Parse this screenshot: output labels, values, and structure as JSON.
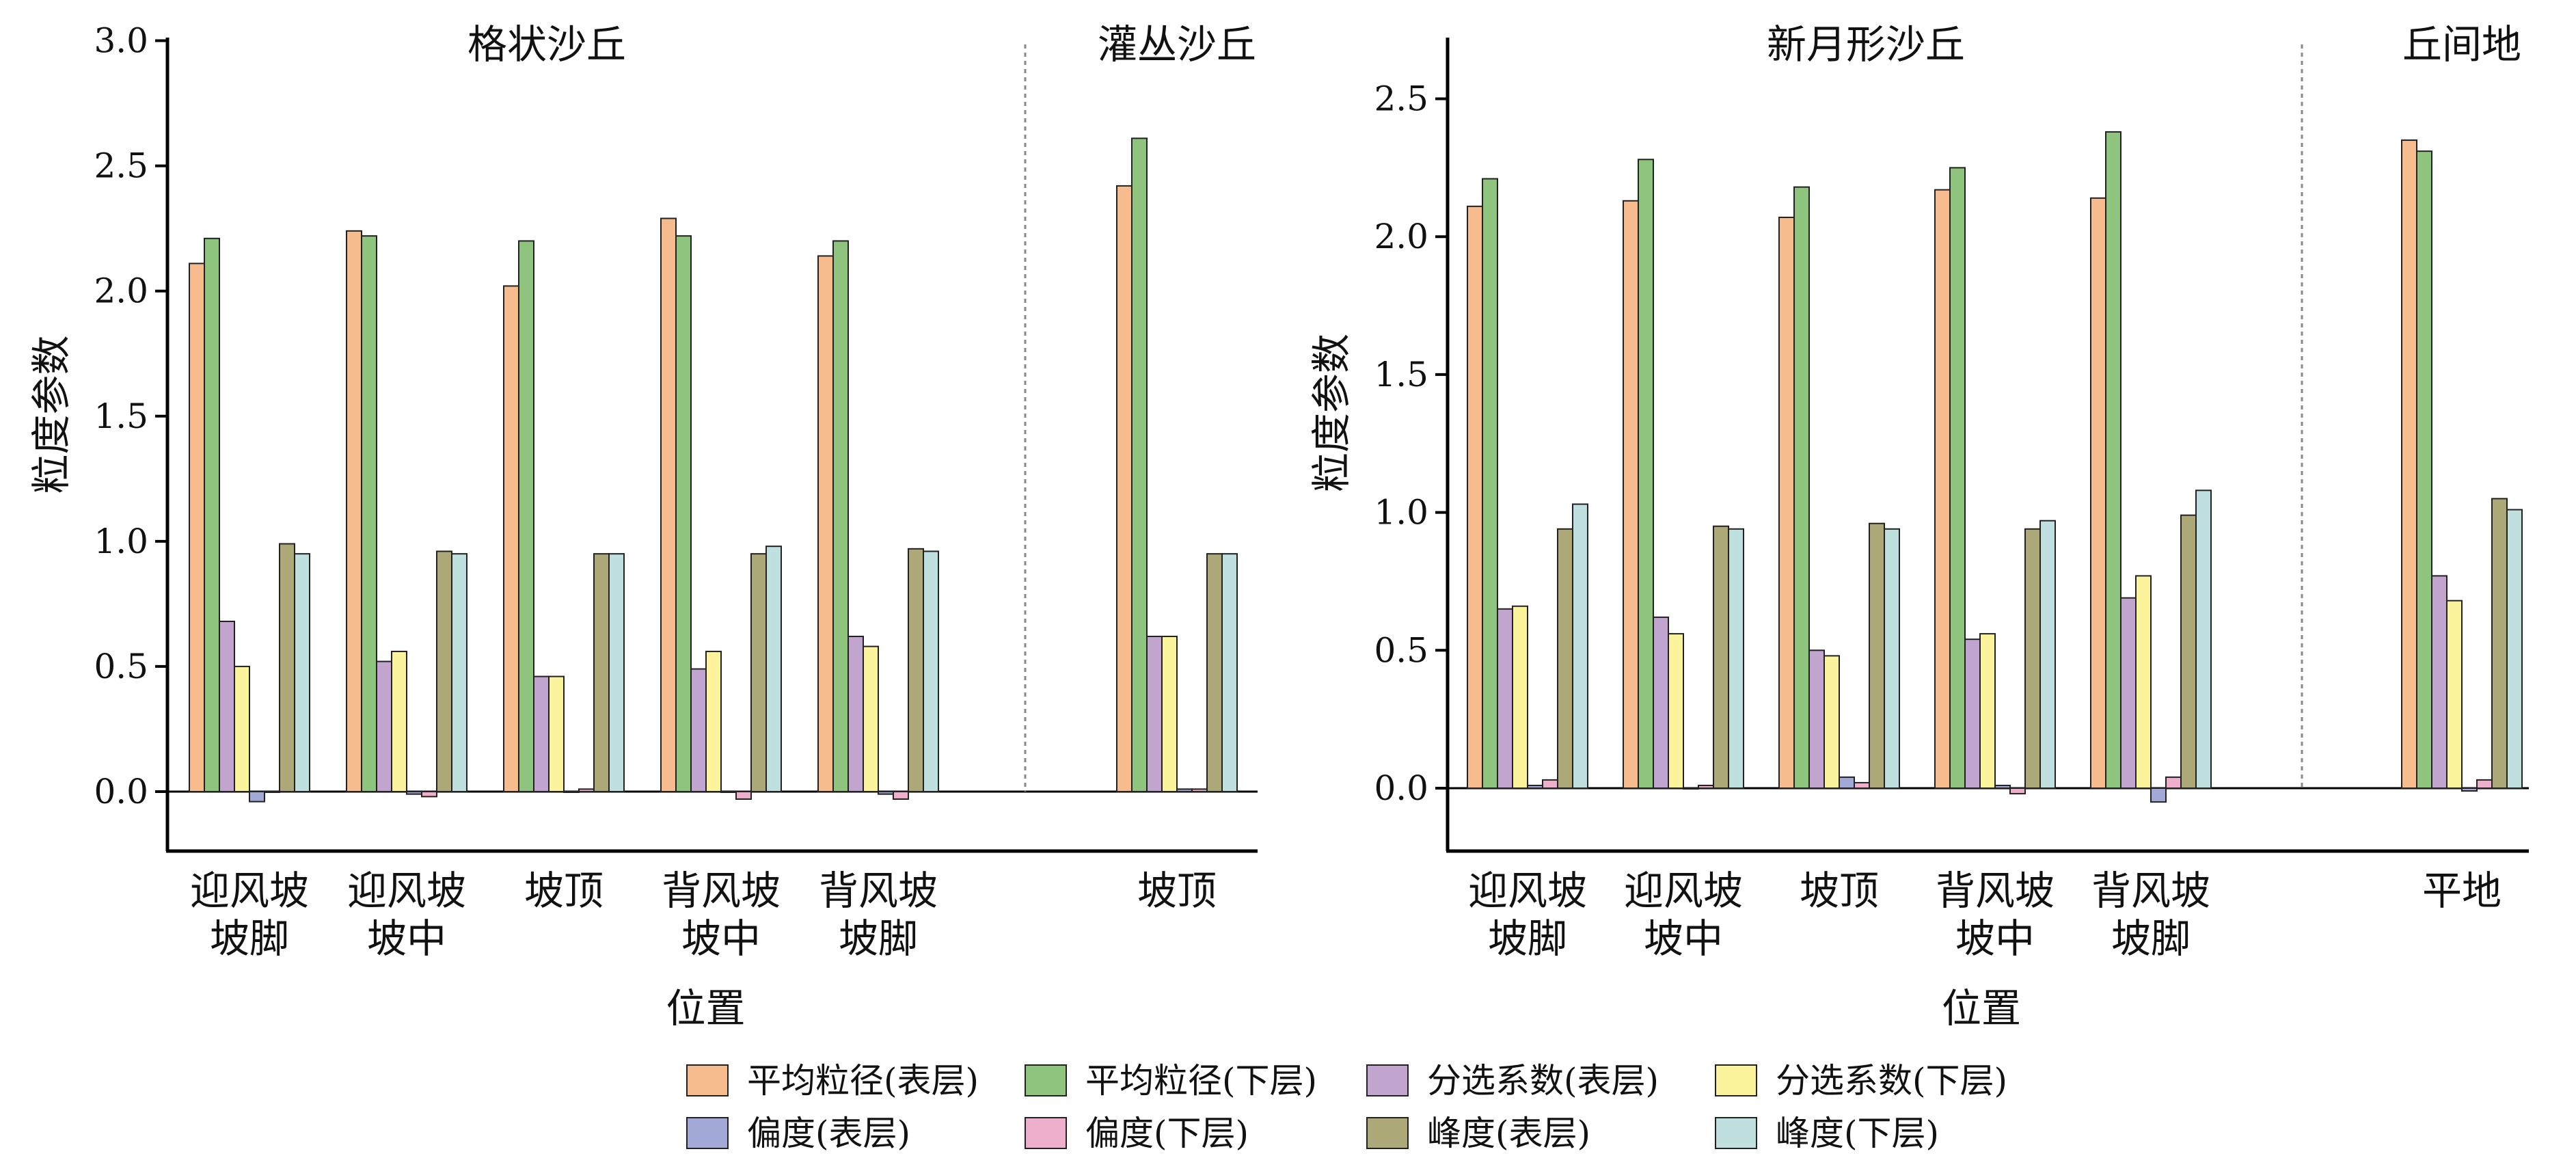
{
  "chart_data": [
    {
      "type": "bar",
      "xlabel": "位置",
      "ylabel": "粒度参数",
      "ylim": [
        -0.25,
        3.0
      ],
      "yticks": [
        "0.0",
        "0.5",
        "1.0",
        "1.5",
        "2.0",
        "2.5",
        "3.0"
      ],
      "groups": [
        "格状沙丘",
        "灌丛沙丘"
      ],
      "categories": [
        {
          "label": "迎风坡\n坡脚",
          "group": "格状沙丘"
        },
        {
          "label": "迎风坡\n坡中",
          "group": "格状沙丘"
        },
        {
          "label": "坡顶",
          "group": "格状沙丘"
        },
        {
          "label": "背风坡\n坡中",
          "group": "格状沙丘"
        },
        {
          "label": "背风坡\n坡脚",
          "group": "格状沙丘"
        },
        {
          "label": "坡顶",
          "group": "灌丛沙丘"
        }
      ],
      "series": [
        {
          "name": "平均粒径(表层)",
          "values": [
            2.11,
            2.24,
            2.02,
            2.29,
            2.14,
            2.42
          ]
        },
        {
          "name": "平均粒径(下层)",
          "values": [
            2.21,
            2.22,
            2.2,
            2.22,
            2.2,
            2.61
          ]
        },
        {
          "name": "分选系数(表层)",
          "values": [
            0.68,
            0.52,
            0.46,
            0.49,
            0.62,
            0.62
          ]
        },
        {
          "name": "分选系数(下层)",
          "values": [
            0.5,
            0.56,
            0.46,
            0.56,
            0.58,
            0.62
          ]
        },
        {
          "name": "偏度(表层)",
          "values": [
            -0.04,
            -0.01,
            0.0,
            0.0,
            -0.01,
            0.01
          ]
        },
        {
          "name": "偏度(下层)",
          "values": [
            0.0,
            -0.02,
            0.01,
            -0.03,
            -0.03,
            0.01
          ]
        },
        {
          "name": "峰度(表层)",
          "values": [
            0.99,
            0.96,
            0.95,
            0.95,
            0.97,
            0.95
          ]
        },
        {
          "name": "峰度(下层)",
          "values": [
            0.95,
            0.95,
            0.95,
            0.98,
            0.96,
            0.95
          ]
        }
      ]
    },
    {
      "type": "bar",
      "xlabel": "位置",
      "ylabel": "粒度参数",
      "ylim": [
        -0.25,
        2.7
      ],
      "yticks": [
        "0.0",
        "0.5",
        "1.0",
        "1.5",
        "2.0",
        "2.5"
      ],
      "groups": [
        "新月形沙丘",
        "丘间地"
      ],
      "categories": [
        {
          "label": "迎风坡\n坡脚",
          "group": "新月形沙丘"
        },
        {
          "label": "迎风坡\n坡中",
          "group": "新月形沙丘"
        },
        {
          "label": "坡顶",
          "group": "新月形沙丘"
        },
        {
          "label": "背风坡\n坡中",
          "group": "新月形沙丘"
        },
        {
          "label": "背风坡\n坡脚",
          "group": "新月形沙丘"
        },
        {
          "label": "平地",
          "group": "丘间地"
        }
      ],
      "series": [
        {
          "name": "平均粒径(表层)",
          "values": [
            2.11,
            2.13,
            2.07,
            2.17,
            2.14,
            2.35
          ]
        },
        {
          "name": "平均粒径(下层)",
          "values": [
            2.21,
            2.28,
            2.18,
            2.25,
            2.38,
            2.31
          ]
        },
        {
          "name": "分选系数(表层)",
          "values": [
            0.65,
            0.62,
            0.5,
            0.54,
            0.69,
            0.77
          ]
        },
        {
          "name": "分选系数(下层)",
          "values": [
            0.66,
            0.56,
            0.48,
            0.56,
            0.77,
            0.68
          ]
        },
        {
          "name": "偏度(表层)",
          "values": [
            0.01,
            0.0,
            0.04,
            0.01,
            -0.05,
            -0.01
          ]
        },
        {
          "name": "偏度(下层)",
          "values": [
            0.03,
            0.01,
            0.02,
            -0.02,
            0.04,
            0.03
          ]
        },
        {
          "name": "峰度(表层)",
          "values": [
            0.94,
            0.95,
            0.96,
            0.94,
            0.99,
            1.05
          ]
        },
        {
          "name": "峰度(下层)",
          "values": [
            1.03,
            0.94,
            0.94,
            0.97,
            1.08,
            1.01
          ]
        }
      ]
    }
  ],
  "legend": {
    "items": [
      "平均粒径(表层)",
      "平均粒径(下层)",
      "分选系数(表层)",
      "分选系数(下层)",
      "偏度(表层)",
      "偏度(下层)",
      "峰度(表层)",
      "峰度(下层)"
    ],
    "colors": [
      "#F7BC8D",
      "#8FC47E",
      "#C2A5CF",
      "#FBF49C",
      "#A3A9D6",
      "#EDAFCB",
      "#ADA877",
      "#BFE0DE"
    ],
    "placement": "bottom-center"
  }
}
